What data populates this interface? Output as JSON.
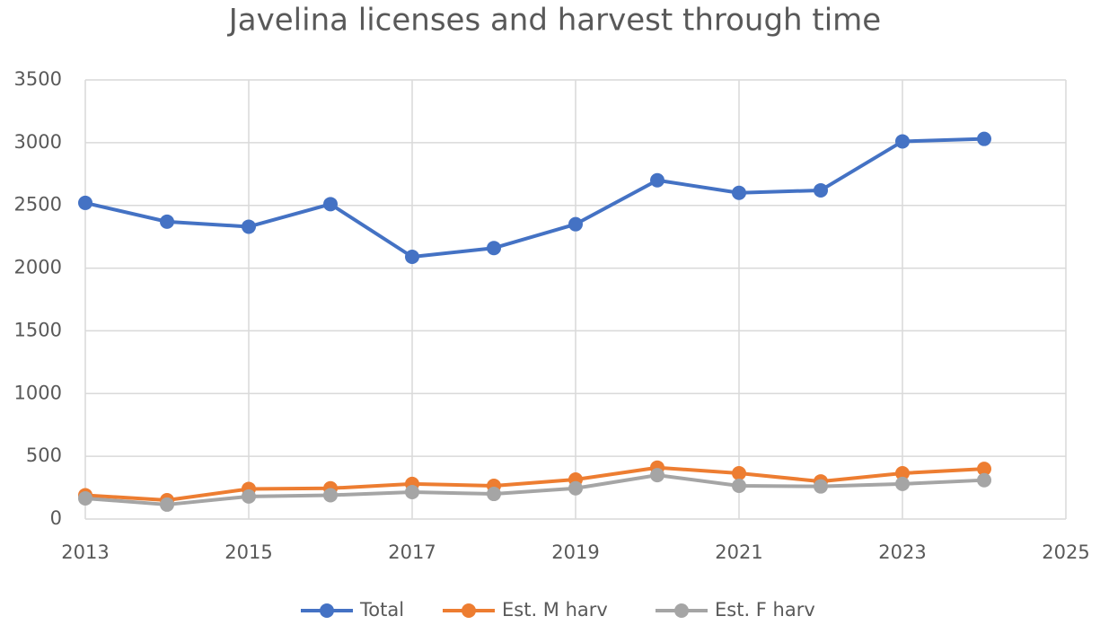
{
  "chart_data": {
    "type": "line",
    "title": "Javelina licenses and harvest through time",
    "x": [
      2013,
      2014,
      2015,
      2016,
      2017,
      2018,
      2019,
      2020,
      2021,
      2022,
      2023,
      2024
    ],
    "series": [
      {
        "name": "Total",
        "color": "#4472c4",
        "values": [
          2520,
          2370,
          2330,
          2510,
          2090,
          2160,
          2350,
          2700,
          2600,
          2620,
          3010,
          3030
        ]
      },
      {
        "name": "Est. M harv",
        "color": "#ed7d31",
        "values": [
          190,
          150,
          240,
          245,
          280,
          265,
          315,
          410,
          365,
          300,
          365,
          400
        ]
      },
      {
        "name": "Est. F harv",
        "color": "#a5a5a5",
        "values": [
          165,
          115,
          180,
          190,
          215,
          200,
          245,
          350,
          265,
          260,
          280,
          310
        ]
      }
    ],
    "xlim": [
      2013,
      2025
    ],
    "xticks": [
      2013,
      2015,
      2017,
      2019,
      2021,
      2023,
      2025
    ],
    "ylim": [
      0,
      3500
    ],
    "yticks": [
      0,
      500,
      1000,
      1500,
      2000,
      2500,
      3000,
      3500
    ],
    "grid": true,
    "legend": "bottom"
  }
}
